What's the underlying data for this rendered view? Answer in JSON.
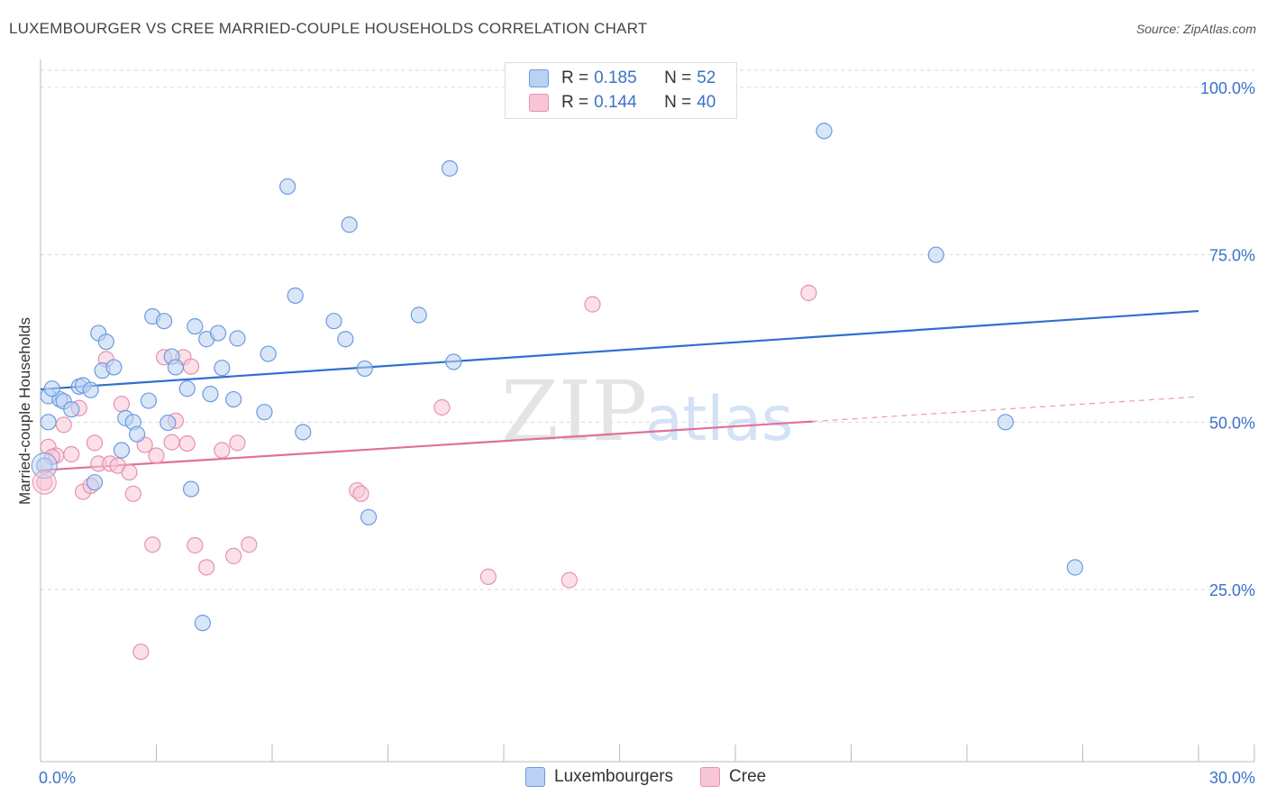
{
  "title": "LUXEMBOURGER VS CREE MARRIED-COUPLE HOUSEHOLDS CORRELATION CHART",
  "source": "Source: ZipAtlas.com",
  "watermark": {
    "zip": "ZIP",
    "atlas": "atlas"
  },
  "legend": {
    "series1": {
      "r_label": "R =",
      "r_value": "0.185",
      "n_label": "N =",
      "n_value": "52"
    },
    "series2": {
      "r_label": "R =",
      "r_value": "0.144",
      "n_label": "N =",
      "n_value": "40"
    }
  },
  "colors": {
    "blue_fill": "#b9d1f3",
    "blue_stroke": "#6c9be0",
    "blue_line": "#2f6fce",
    "pink_fill": "#f7c6d6",
    "pink_stroke": "#e891ae",
    "pink_line": "#e0709a",
    "axis_text": "#3b72c8"
  },
  "chart_data": {
    "type": "scatter",
    "title": "LUXEMBOURGER VS CREE MARRIED-COUPLE HOUSEHOLDS CORRELATION CHART",
    "xlabel": "",
    "ylabel": "Married-couple Households",
    "xlim": [
      0,
      30
    ],
    "ylim": [
      0,
      104
    ],
    "x_tick_labels": [
      "0.0%",
      "30.0%"
    ],
    "y_ticks": [
      25,
      50,
      75,
      100
    ],
    "y_tick_labels": [
      "25.0%",
      "50.0%",
      "75.0%",
      "100.0%"
    ],
    "grid": true,
    "legend_position": "top-center",
    "series": [
      {
        "name": "Luxembourgers",
        "color": "blue",
        "trend": {
          "x0": 0,
          "y0": 54.9,
          "x1": 30,
          "y1": 66.6
        },
        "points": [
          [
            0.2,
            53.9
          ],
          [
            0.5,
            53.4
          ],
          [
            0.3,
            55.0
          ],
          [
            0.6,
            53.1
          ],
          [
            0.8,
            51.9
          ],
          [
            1.0,
            55.3
          ],
          [
            1.1,
            55.5
          ],
          [
            1.3,
            54.8
          ],
          [
            1.5,
            63.3
          ],
          [
            1.7,
            62.0
          ],
          [
            1.6,
            57.7
          ],
          [
            1.9,
            58.2
          ],
          [
            2.2,
            50.6
          ],
          [
            2.4,
            50.0
          ],
          [
            2.5,
            48.2
          ],
          [
            2.8,
            53.2
          ],
          [
            2.9,
            65.8
          ],
          [
            3.2,
            65.1
          ],
          [
            3.3,
            49.9
          ],
          [
            3.4,
            59.8
          ],
          [
            3.5,
            58.2
          ],
          [
            3.8,
            55.0
          ],
          [
            3.9,
            40.0
          ],
          [
            4.0,
            64.3
          ],
          [
            4.3,
            62.4
          ],
          [
            4.4,
            54.2
          ],
          [
            4.6,
            63.3
          ],
          [
            4.7,
            58.1
          ],
          [
            5.0,
            53.4
          ],
          [
            5.1,
            62.5
          ],
          [
            5.8,
            51.5
          ],
          [
            5.9,
            60.2
          ],
          [
            6.4,
            85.2
          ],
          [
            6.6,
            68.9
          ],
          [
            6.8,
            48.5
          ],
          [
            7.6,
            65.1
          ],
          [
            7.9,
            62.4
          ],
          [
            8.0,
            79.5
          ],
          [
            8.4,
            58.0
          ],
          [
            8.5,
            35.8
          ],
          [
            9.8,
            66.0
          ],
          [
            10.6,
            87.9
          ],
          [
            10.7,
            59.0
          ],
          [
            20.3,
            93.5
          ],
          [
            23.2,
            75.0
          ],
          [
            25.0,
            50.0
          ],
          [
            26.8,
            28.3
          ],
          [
            4.2,
            20.0
          ],
          [
            2.1,
            45.8
          ],
          [
            1.4,
            41.0
          ],
          [
            0.2,
            50.0
          ],
          [
            0.1,
            43.5
          ]
        ]
      },
      {
        "name": "Cree",
        "color": "pink",
        "trend": {
          "x0": 0,
          "y0": 42.8,
          "x1": 20.0,
          "y1": 50.1,
          "dash_x1": 30,
          "dash_y1": 53.8
        },
        "points": [
          [
            0.1,
            41.0
          ],
          [
            0.2,
            46.3
          ],
          [
            0.4,
            45.0
          ],
          [
            0.6,
            49.6
          ],
          [
            0.8,
            45.2
          ],
          [
            1.0,
            52.1
          ],
          [
            1.1,
            39.6
          ],
          [
            1.3,
            40.5
          ],
          [
            1.4,
            46.9
          ],
          [
            1.5,
            43.8
          ],
          [
            1.7,
            59.4
          ],
          [
            1.8,
            43.8
          ],
          [
            2.0,
            43.5
          ],
          [
            2.1,
            52.7
          ],
          [
            2.3,
            42.5
          ],
          [
            2.4,
            39.3
          ],
          [
            2.7,
            46.6
          ],
          [
            2.9,
            31.7
          ],
          [
            3.0,
            45.0
          ],
          [
            3.2,
            59.7
          ],
          [
            3.4,
            47.0
          ],
          [
            3.5,
            50.2
          ],
          [
            3.7,
            59.7
          ],
          [
            3.8,
            46.8
          ],
          [
            3.9,
            58.3
          ],
          [
            4.0,
            31.6
          ],
          [
            4.3,
            28.3
          ],
          [
            4.7,
            45.8
          ],
          [
            5.0,
            30.0
          ],
          [
            5.1,
            46.9
          ],
          [
            5.4,
            31.7
          ],
          [
            2.6,
            15.7
          ],
          [
            8.2,
            39.8
          ],
          [
            8.3,
            39.3
          ],
          [
            10.4,
            52.2
          ],
          [
            11.6,
            26.9
          ],
          [
            13.7,
            26.4
          ],
          [
            14.3,
            67.6
          ],
          [
            19.9,
            69.3
          ],
          [
            0.3,
            44.8
          ]
        ]
      }
    ]
  },
  "bottom_legend": {
    "item1": "Luxembourgers",
    "item2": "Cree"
  }
}
